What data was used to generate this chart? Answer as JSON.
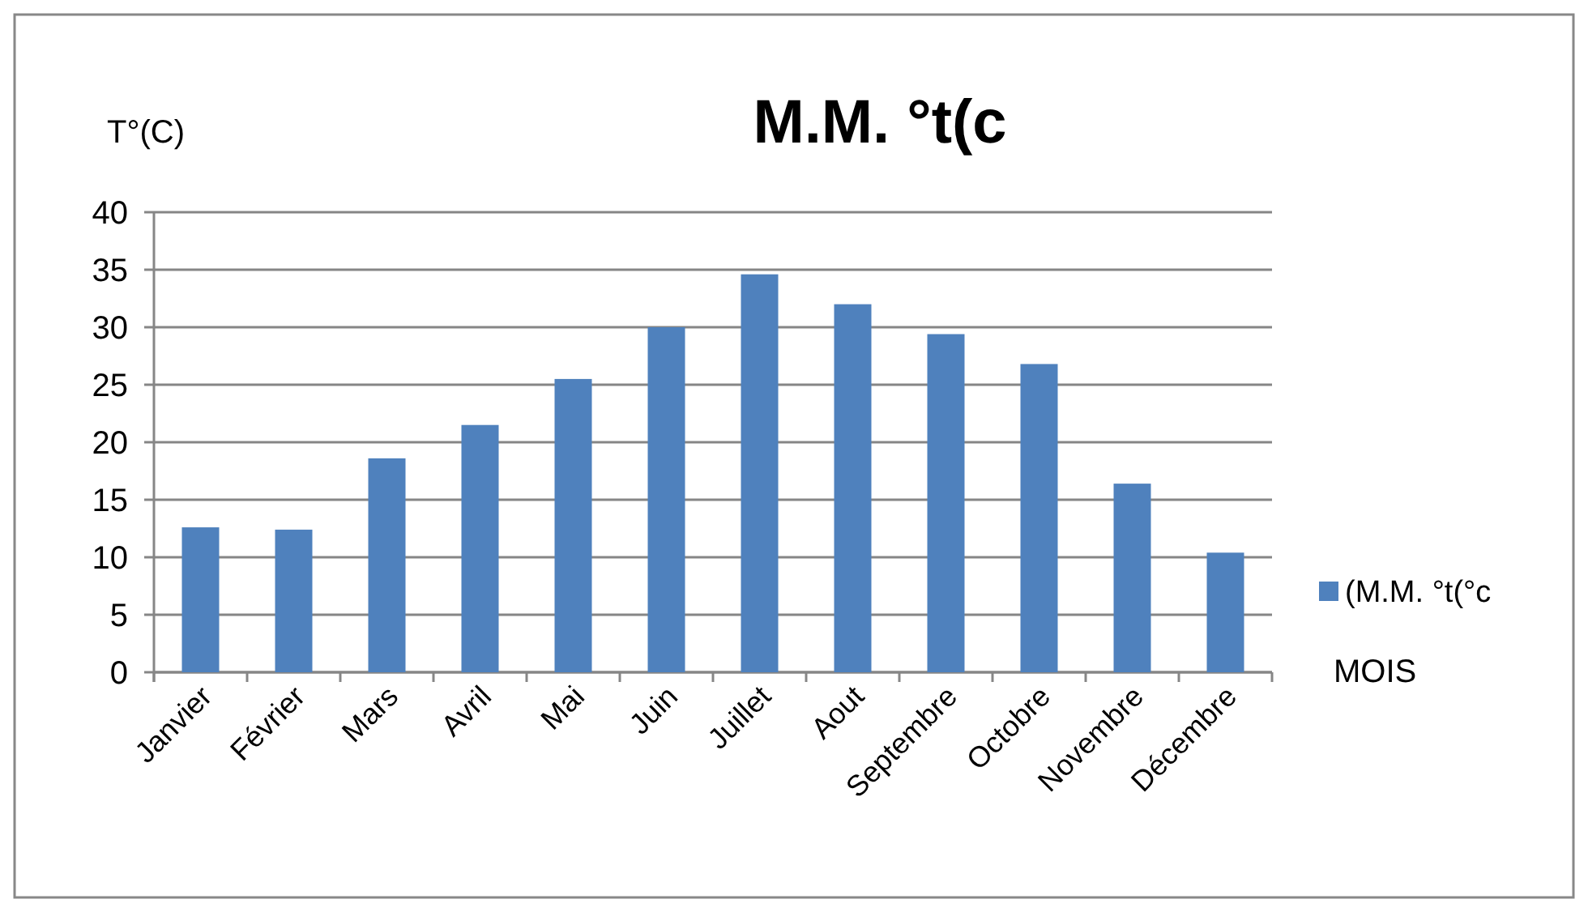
{
  "chart_data": {
    "type": "bar",
    "title": "M.M. °t(c",
    "ylabel": "T°(C)",
    "xlabel": "MOIS",
    "categories": [
      "Janvier",
      "Février",
      "Mars",
      "Avril",
      "Mai",
      "Juin",
      "Juillet",
      "Aout",
      "Septembre",
      "Octobre",
      "Novembre",
      "Décembre"
    ],
    "series": [
      {
        "name": "(M.M. °t(°c",
        "color": "#4f81bd",
        "values": [
          12.6,
          12.4,
          18.6,
          21.5,
          25.5,
          30.0,
          34.6,
          32.0,
          29.4,
          26.8,
          16.4,
          10.4
        ]
      }
    ],
    "ylim": [
      0,
      40
    ],
    "yticks": [
      0,
      5,
      10,
      15,
      20,
      25,
      30,
      35,
      40
    ],
    "grid": "y",
    "legend": "right"
  }
}
